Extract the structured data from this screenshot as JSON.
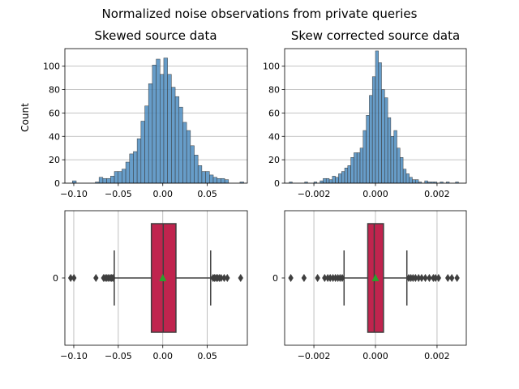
{
  "figure_title": "Normalized noise observations from private queries",
  "chart_data": [
    {
      "type": "histogram",
      "title": "Skewed source data",
      "ylabel": "Count",
      "xlim": [
        -0.11,
        0.095
      ],
      "ylim": [
        0,
        115
      ],
      "xticks": [
        -0.1,
        -0.05,
        0.0,
        0.05
      ],
      "xtick_labels": [
        "−0.10",
        "−0.05",
        "0.00",
        "0.05"
      ],
      "yticks": [
        0,
        20,
        40,
        60,
        80,
        100
      ],
      "ytick_labels": [
        "0",
        "20",
        "40",
        "60",
        "80",
        "100"
      ],
      "grid": "y",
      "bin_width": 0.00427,
      "bins": [
        {
          "x0": -0.1015,
          "count": 2
        },
        {
          "x0": -0.0758,
          "count": 1
        },
        {
          "x0": -0.0716,
          "count": 5
        },
        {
          "x0": -0.0673,
          "count": 4
        },
        {
          "x0": -0.063,
          "count": 4
        },
        {
          "x0": -0.0587,
          "count": 6
        },
        {
          "x0": -0.0544,
          "count": 10
        },
        {
          "x0": -0.0502,
          "count": 10
        },
        {
          "x0": -0.0459,
          "count": 12
        },
        {
          "x0": -0.0416,
          "count": 18
        },
        {
          "x0": -0.0373,
          "count": 25
        },
        {
          "x0": -0.0331,
          "count": 27
        },
        {
          "x0": -0.0288,
          "count": 38
        },
        {
          "x0": -0.0245,
          "count": 53
        },
        {
          "x0": -0.0202,
          "count": 66
        },
        {
          "x0": -0.016,
          "count": 85
        },
        {
          "x0": -0.0117,
          "count": 101
        },
        {
          "x0": -0.0074,
          "count": 106
        },
        {
          "x0": -0.0031,
          "count": 93
        },
        {
          "x0": 0.0011,
          "count": 107
        },
        {
          "x0": 0.0054,
          "count": 93
        },
        {
          "x0": 0.0097,
          "count": 82
        },
        {
          "x0": 0.014,
          "count": 74
        },
        {
          "x0": 0.0182,
          "count": 65
        },
        {
          "x0": 0.0225,
          "count": 52
        },
        {
          "x0": 0.0268,
          "count": 45
        },
        {
          "x0": 0.0311,
          "count": 32
        },
        {
          "x0": 0.0353,
          "count": 24
        },
        {
          "x0": 0.0396,
          "count": 15
        },
        {
          "x0": 0.0439,
          "count": 10
        },
        {
          "x0": 0.0482,
          "count": 10
        },
        {
          "x0": 0.0525,
          "count": 7
        },
        {
          "x0": 0.0567,
          "count": 5
        },
        {
          "x0": 0.061,
          "count": 4
        },
        {
          "x0": 0.0653,
          "count": 4
        },
        {
          "x0": 0.0696,
          "count": 3
        },
        {
          "x0": 0.0867,
          "count": 1
        }
      ]
    },
    {
      "type": "histogram",
      "title": "Skew corrected source data",
      "ylabel": "",
      "xlim": [
        -0.00295,
        0.00295
      ],
      "ylim": [
        0,
        115
      ],
      "xticks": [
        -0.002,
        0.0,
        0.002
      ],
      "xtick_labels": [
        "−0.002",
        "0.000",
        "0.002"
      ],
      "yticks": [
        0,
        20,
        40,
        60,
        80,
        100
      ],
      "ytick_labels": [
        "0",
        "20",
        "40",
        "60",
        "80",
        "100"
      ],
      "grid": "y",
      "bin_width": 9.76e-05,
      "bins": [
        {
          "x0": -0.0028,
          "count": 1
        },
        {
          "x0": -0.0023,
          "count": 1
        },
        {
          "x0": -0.002,
          "count": 1
        },
        {
          "x0": -0.0018,
          "count": 2
        },
        {
          "x0": -0.0017,
          "count": 4
        },
        {
          "x0": -0.0016,
          "count": 4
        },
        {
          "x0": -0.0015,
          "count": 3
        },
        {
          "x0": -0.0014,
          "count": 6
        },
        {
          "x0": -0.0013,
          "count": 5
        },
        {
          "x0": -0.0012,
          "count": 8
        },
        {
          "x0": -0.0011,
          "count": 10
        },
        {
          "x0": -0.001,
          "count": 13
        },
        {
          "x0": -0.0009,
          "count": 15
        },
        {
          "x0": -0.0008,
          "count": 22
        },
        {
          "x0": -0.0007,
          "count": 26
        },
        {
          "x0": -0.0006,
          "count": 26
        },
        {
          "x0": -0.0005,
          "count": 30
        },
        {
          "x0": -0.0004,
          "count": 45
        },
        {
          "x0": -0.0003,
          "count": 58
        },
        {
          "x0": -0.0002,
          "count": 75
        },
        {
          "x0": -0.0001,
          "count": 91
        },
        {
          "x0": 0.0,
          "count": 113
        },
        {
          "x0": 0.0001,
          "count": 103
        },
        {
          "x0": 0.0002,
          "count": 80
        },
        {
          "x0": 0.0003,
          "count": 73
        },
        {
          "x0": 0.0004,
          "count": 56
        },
        {
          "x0": 0.0005,
          "count": 40
        },
        {
          "x0": 0.0006,
          "count": 45
        },
        {
          "x0": 0.0007,
          "count": 30
        },
        {
          "x0": 0.0008,
          "count": 22
        },
        {
          "x0": 0.0009,
          "count": 12
        },
        {
          "x0": 0.001,
          "count": 8
        },
        {
          "x0": 0.0011,
          "count": 5
        },
        {
          "x0": 0.0012,
          "count": 3
        },
        {
          "x0": 0.0013,
          "count": 3
        },
        {
          "x0": 0.0014,
          "count": 1
        },
        {
          "x0": 0.0016,
          "count": 2
        },
        {
          "x0": 0.0017,
          "count": 1
        },
        {
          "x0": 0.0018,
          "count": 1
        },
        {
          "x0": 0.0019,
          "count": 1
        },
        {
          "x0": 0.0021,
          "count": 1
        },
        {
          "x0": 0.0023,
          "count": 1
        },
        {
          "x0": 0.0026,
          "count": 1
        }
      ]
    },
    {
      "type": "boxplot",
      "title": "",
      "xlim": [
        -0.11,
        0.095
      ],
      "xticks": [
        -0.1,
        -0.05,
        0.0,
        0.05
      ],
      "xtick_labels": [
        "−0.10",
        "−0.05",
        "0.00",
        "0.05"
      ],
      "category_label": "0",
      "grid": "x",
      "box": {
        "q1": -0.0128,
        "median": 0.0005,
        "q3": 0.0148,
        "whisker_low": -0.0545,
        "whisker_high": 0.0538,
        "mean": 0.0
      },
      "fliers": [
        -0.1035,
        -0.0998,
        -0.0751,
        -0.0665,
        -0.0646,
        -0.0628,
        -0.061,
        -0.059,
        -0.0575,
        -0.056,
        0.0565,
        0.058,
        0.0598,
        0.0615,
        0.0635,
        0.0655,
        0.069,
        0.0725,
        0.0875
      ]
    },
    {
      "type": "boxplot",
      "title": "",
      "xlim": [
        -0.00295,
        0.00295
      ],
      "xticks": [
        -0.002,
        0.0,
        0.002
      ],
      "xtick_labels": [
        "−0.002",
        "0.000",
        "0.002"
      ],
      "category_label": "0",
      "grid": "x",
      "box": {
        "q1": -0.00025,
        "median": -4e-05,
        "q3": 0.00026,
        "whisker_low": -0.00102,
        "whisker_high": 0.00102,
        "mean": 0.0
      },
      "fliers": [
        -0.00275,
        -0.00232,
        -0.00188,
        -0.00165,
        -0.00155,
        -0.00147,
        -0.00138,
        -0.0013,
        -0.00122,
        -0.00115,
        -0.00108,
        0.00108,
        0.00115,
        0.00122,
        0.0013,
        0.0014,
        0.0015,
        0.00162,
        0.00175,
        0.00188,
        0.00195,
        0.00205,
        0.00235,
        0.00248,
        0.00265
      ]
    }
  ]
}
